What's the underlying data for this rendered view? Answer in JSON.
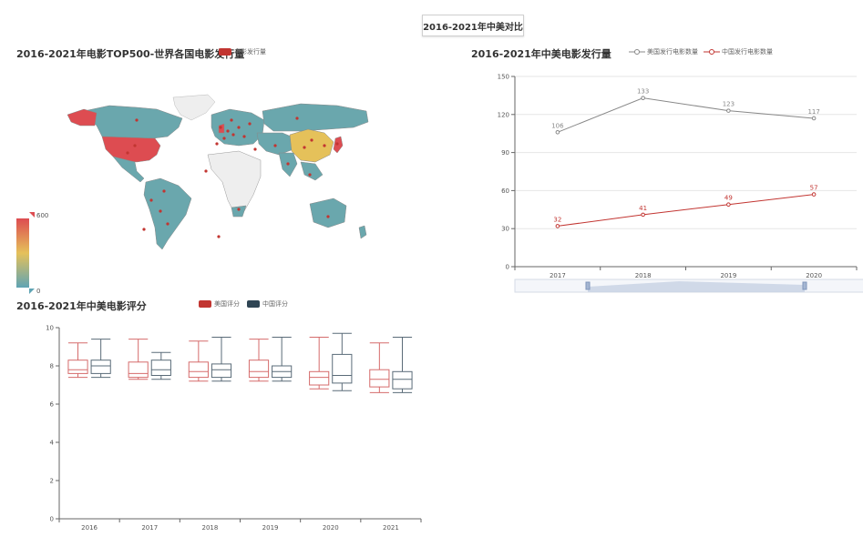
{
  "page": {
    "title": "2016-2021年中美对比"
  },
  "colors": {
    "usa": "#c23531",
    "china": "#2f4554",
    "map_low": "#5fa4b4",
    "map_mid": "#e5c15a",
    "map_high": "#dd4c51",
    "map_none": "#eeeeee",
    "grid": "#dddddd"
  },
  "chart_data": [
    {
      "id": "map",
      "type": "map",
      "title": "2016-2021年电影TOP500-世界各国电影发行量",
      "legend": [
        "电影发行量"
      ],
      "visual_map": {
        "min": 0,
        "max": 600
      }
    },
    {
      "id": "line",
      "type": "line",
      "title": "2016-2021年中美电影发行量",
      "categories": [
        "2017",
        "2018",
        "2019",
        "2020"
      ],
      "series": [
        {
          "name": "美国发行电影数量",
          "values": [
            106,
            133,
            123,
            117
          ]
        },
        {
          "name": "中国发行电影数量",
          "values": [
            32,
            41,
            49,
            57
          ]
        }
      ],
      "ylim": [
        0,
        150
      ],
      "yticks": [
        "0",
        "30",
        "60",
        "90",
        "120",
        "150"
      ],
      "legend_position": "top"
    },
    {
      "id": "box",
      "type": "boxplot",
      "title": "2016-2021年中美电影评分",
      "categories": [
        "2016",
        "2017",
        "2018",
        "2019",
        "2020",
        "2021"
      ],
      "series": [
        {
          "name": "美国评分",
          "boxes": [
            [
              7.4,
              7.6,
              7.8,
              8.3,
              9.2
            ],
            [
              7.3,
              7.4,
              7.6,
              8.2,
              9.4
            ],
            [
              7.2,
              7.4,
              7.7,
              8.2,
              9.3
            ],
            [
              7.2,
              7.4,
              7.7,
              8.3,
              9.4
            ],
            [
              6.8,
              7.0,
              7.4,
              7.7,
              9.5
            ],
            [
              6.6,
              6.9,
              7.3,
              7.8,
              9.2
            ]
          ]
        },
        {
          "name": "中国评分",
          "boxes": [
            [
              7.4,
              7.6,
              8.0,
              8.3,
              9.4
            ],
            [
              7.3,
              7.5,
              7.8,
              8.3,
              8.7
            ],
            [
              7.2,
              7.4,
              7.8,
              8.1,
              9.5
            ],
            [
              7.2,
              7.4,
              7.7,
              8.0,
              9.5
            ],
            [
              6.7,
              7.1,
              7.5,
              8.6,
              9.7
            ],
            [
              6.6,
              6.8,
              7.3,
              7.7,
              9.5
            ]
          ]
        }
      ],
      "ylim": [
        0,
        10
      ],
      "yticks": [
        "0",
        "2",
        "4",
        "6",
        "8",
        "10"
      ]
    }
  ]
}
